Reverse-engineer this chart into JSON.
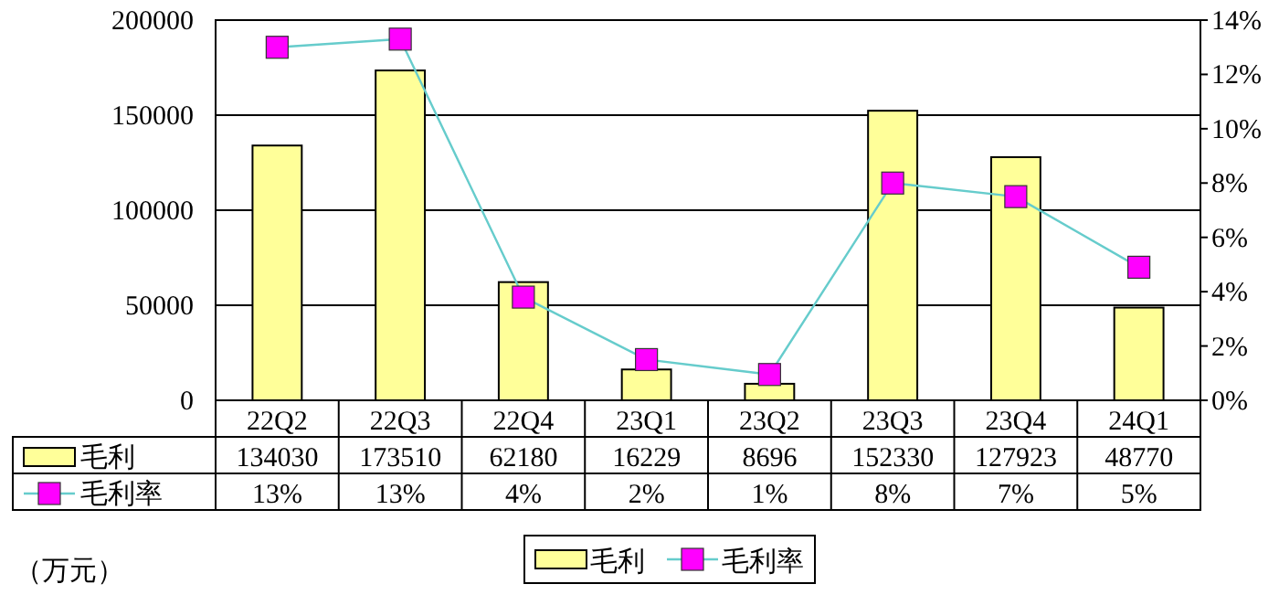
{
  "chart_data": {
    "type": "bar",
    "categories": [
      "22Q2",
      "22Q3",
      "22Q4",
      "23Q1",
      "23Q2",
      "23Q3",
      "23Q4",
      "24Q1"
    ],
    "series": [
      {
        "name": "毛利",
        "color": "#ffff99",
        "values": [
          134030,
          173510,
          62180,
          16229,
          8696,
          152330,
          127923,
          48770
        ],
        "value_labels": [
          "134030",
          "173510",
          "62180",
          "16229",
          "8696",
          "152330",
          "127923",
          "48770"
        ]
      },
      {
        "name": "毛利率",
        "type": "line",
        "axis": "y2",
        "color": "#66cccc",
        "colors": [
          "#ff00ff",
          "#ff00ff",
          "#ff00ff",
          "#ff00ff",
          "#ff00ff",
          "#ff00ff",
          "#ff00ff",
          "#ff00ff"
        ],
        "values": [
          13.0,
          13.3,
          3.8,
          1.5,
          0.95,
          8.0,
          7.5,
          4.9
        ],
        "value_labels": [
          "13%",
          "13%",
          "4%",
          "2%",
          "1%",
          "8%",
          "7%",
          "5%"
        ]
      }
    ],
    "ylim": [
      0,
      200000
    ],
    "yticks": [
      0,
      50000,
      100000,
      150000,
      200000
    ],
    "y2lim": [
      0,
      14
    ],
    "y2ticks": [
      {
        "value": 0,
        "label": "0%"
      },
      {
        "value": 2,
        "label": "2%"
      },
      {
        "value": 4,
        "label": "4%"
      },
      {
        "value": 6,
        "label": "6%"
      },
      {
        "value": 8,
        "label": "8%"
      },
      {
        "value": 10,
        "label": "10%"
      },
      {
        "value": 12,
        "label": "12%"
      },
      {
        "value": 14,
        "label": "14%"
      }
    ],
    "grid": "y",
    "marker": "square",
    "legend": "bottom",
    "annotations": [
      "（万元）"
    ]
  }
}
